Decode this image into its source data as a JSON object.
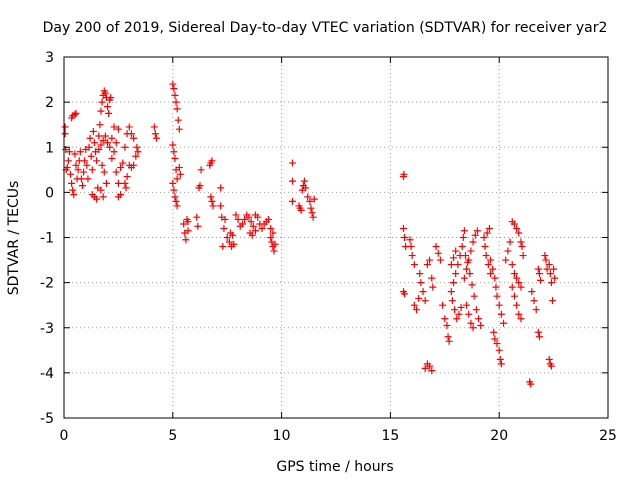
{
  "chart_data": {
    "type": "scatter",
    "title": "Day 200 of 2019, Sidereal Day-to-day VTEC variation (SDTVAR) for receiver yar2",
    "xlabel": "GPS time / hours",
    "ylabel": "SDTVAR / TECUs",
    "xlim": [
      0,
      25
    ],
    "ylim": [
      -5,
      3
    ],
    "xticks": [
      0,
      5,
      10,
      15,
      20,
      25
    ],
    "yticks": [
      -5,
      -4,
      -3,
      -2,
      -1,
      0,
      1,
      2,
      3
    ],
    "grid": true,
    "marker": "+",
    "color": "#ff0000",
    "series": [
      {
        "name": "SDTVAR",
        "points": [
          [
            0.05,
            1.45
          ],
          [
            0.05,
            1.3
          ],
          [
            0.08,
            0.95
          ],
          [
            0.1,
            0.5
          ],
          [
            0.15,
            0.55
          ],
          [
            0.2,
            0.7
          ],
          [
            0.25,
            0.9
          ],
          [
            0.3,
            0.4
          ],
          [
            0.35,
            0.2
          ],
          [
            0.4,
            0.05
          ],
          [
            0.45,
            -0.05
          ],
          [
            0.5,
            0.85
          ],
          [
            0.55,
            0.6
          ],
          [
            0.35,
            1.65
          ],
          [
            0.4,
            1.7
          ],
          [
            0.5,
            1.72
          ],
          [
            0.55,
            1.75
          ],
          [
            0.6,
            0.3
          ],
          [
            0.65,
            0.5
          ],
          [
            0.7,
            0.7
          ],
          [
            0.75,
            0.9
          ],
          [
            0.8,
            0.3
          ],
          [
            0.85,
            0.15
          ],
          [
            0.9,
            0.45
          ],
          [
            0.95,
            0.7
          ],
          [
            1.0,
            0.95
          ],
          [
            1.05,
            0.6
          ],
          [
            1.1,
            0.3
          ],
          [
            1.15,
            1.0
          ],
          [
            1.2,
            1.2
          ],
          [
            1.25,
            0.8
          ],
          [
            1.3,
            0.5
          ],
          [
            1.35,
            1.35
          ],
          [
            1.4,
            1.1
          ],
          [
            1.45,
            0.9
          ],
          [
            1.5,
            0.7
          ],
          [
            1.3,
            -0.05
          ],
          [
            1.4,
            -0.1
          ],
          [
            1.5,
            -0.15
          ],
          [
            1.55,
            0.1
          ],
          [
            1.6,
            1.25
          ],
          [
            1.65,
            1.5
          ],
          [
            1.7,
            1.8
          ],
          [
            1.75,
            2.0
          ],
          [
            1.8,
            2.15
          ],
          [
            1.85,
            2.25
          ],
          [
            1.9,
            2.2
          ],
          [
            1.95,
            2.1
          ],
          [
            2.0,
            1.9
          ],
          [
            2.05,
            1.75
          ],
          [
            2.1,
            2.05
          ],
          [
            2.15,
            2.1
          ],
          [
            1.6,
            0.95
          ],
          [
            1.7,
            1.05
          ],
          [
            1.8,
            1.15
          ],
          [
            1.9,
            1.25
          ],
          [
            2.0,
            1.1
          ],
          [
            2.1,
            1.0
          ],
          [
            2.2,
            1.2
          ],
          [
            2.3,
            1.45
          ],
          [
            1.75,
            0.6
          ],
          [
            1.85,
            0.45
          ],
          [
            1.95,
            0.2
          ],
          [
            1.7,
            0.05
          ],
          [
            1.8,
            -0.1
          ],
          [
            2.2,
            0.75
          ],
          [
            2.3,
            0.9
          ],
          [
            2.4,
            1.1
          ],
          [
            2.5,
            1.4
          ],
          [
            2.4,
            0.45
          ],
          [
            2.5,
            0.2
          ],
          [
            2.5,
            -0.1
          ],
          [
            2.6,
            -0.05
          ],
          [
            2.6,
            0.55
          ],
          [
            2.7,
            0.65
          ],
          [
            2.8,
            1.0
          ],
          [
            2.9,
            1.3
          ],
          [
            3.0,
            1.45
          ],
          [
            3.1,
            1.3
          ],
          [
            3.2,
            1.2
          ],
          [
            2.8,
            0.2
          ],
          [
            2.85,
            0.1
          ],
          [
            2.9,
            0.35
          ],
          [
            3.0,
            0.6
          ],
          [
            3.1,
            0.55
          ],
          [
            3.2,
            0.6
          ],
          [
            3.3,
            0.8
          ],
          [
            3.35,
            1.0
          ],
          [
            3.4,
            0.9
          ],
          [
            4.15,
            1.45
          ],
          [
            4.2,
            1.3
          ],
          [
            4.25,
            1.2
          ],
          [
            5.0,
            2.4
          ],
          [
            5.05,
            2.3
          ],
          [
            5.1,
            2.15
          ],
          [
            5.15,
            2.0
          ],
          [
            5.2,
            1.85
          ],
          [
            5.25,
            1.6
          ],
          [
            5.3,
            1.4
          ],
          [
            5.0,
            1.05
          ],
          [
            5.05,
            0.9
          ],
          [
            5.1,
            0.75
          ],
          [
            5.15,
            0.5
          ],
          [
            5.2,
            0.3
          ],
          [
            5.0,
            0.2
          ],
          [
            5.05,
            0.05
          ],
          [
            5.1,
            -0.1
          ],
          [
            5.15,
            -0.2
          ],
          [
            5.2,
            -0.3
          ],
          [
            5.3,
            0.55
          ],
          [
            5.35,
            0.4
          ],
          [
            5.5,
            -0.7
          ],
          [
            5.55,
            -0.9
          ],
          [
            5.6,
            -1.05
          ],
          [
            5.65,
            -0.6
          ],
          [
            5.7,
            -0.65
          ],
          [
            5.7,
            -0.85
          ],
          [
            6.1,
            -0.55
          ],
          [
            6.15,
            -0.75
          ],
          [
            6.2,
            0.1
          ],
          [
            6.25,
            0.15
          ],
          [
            6.3,
            0.5
          ],
          [
            6.7,
            0.6
          ],
          [
            6.75,
            0.65
          ],
          [
            6.8,
            0.7
          ],
          [
            6.75,
            -0.1
          ],
          [
            6.8,
            -0.2
          ],
          [
            6.85,
            -0.3
          ],
          [
            7.2,
            0.1
          ],
          [
            7.2,
            -0.3
          ],
          [
            7.25,
            -0.55
          ],
          [
            7.3,
            -1.2
          ],
          [
            7.35,
            -0.8
          ],
          [
            7.4,
            -0.6
          ],
          [
            7.5,
            -1.0
          ],
          [
            7.6,
            -1.1
          ],
          [
            7.7,
            -1.2
          ],
          [
            7.65,
            -0.9
          ],
          [
            7.75,
            -0.95
          ],
          [
            7.8,
            -1.15
          ],
          [
            7.9,
            -0.5
          ],
          [
            8.0,
            -0.6
          ],
          [
            8.1,
            -0.75
          ],
          [
            8.2,
            -0.7
          ],
          [
            8.3,
            -0.6
          ],
          [
            8.4,
            -0.5
          ],
          [
            8.5,
            -0.55
          ],
          [
            8.6,
            -0.65
          ],
          [
            8.7,
            -0.75
          ],
          [
            8.8,
            -0.85
          ],
          [
            8.55,
            -0.9
          ],
          [
            8.65,
            -0.95
          ],
          [
            8.8,
            -0.5
          ],
          [
            8.9,
            -0.55
          ],
          [
            9.0,
            -0.7
          ],
          [
            9.1,
            -0.8
          ],
          [
            9.2,
            -0.7
          ],
          [
            9.3,
            -0.65
          ],
          [
            9.4,
            -0.6
          ],
          [
            9.5,
            -0.8
          ],
          [
            9.6,
            -0.9
          ],
          [
            9.5,
            -1.0
          ],
          [
            9.55,
            -1.1
          ],
          [
            9.6,
            -1.2
          ],
          [
            9.65,
            -1.3
          ],
          [
            9.7,
            -1.15
          ],
          [
            10.5,
            0.65
          ],
          [
            10.5,
            0.25
          ],
          [
            10.5,
            -0.2
          ],
          [
            10.8,
            -0.3
          ],
          [
            10.85,
            -0.35
          ],
          [
            10.9,
            -0.4
          ],
          [
            10.95,
            0.05
          ],
          [
            11.0,
            0.15
          ],
          [
            11.05,
            0.25
          ],
          [
            11.1,
            0.1
          ],
          [
            11.2,
            -0.1
          ],
          [
            11.3,
            -0.2
          ],
          [
            11.35,
            -0.35
          ],
          [
            11.4,
            -0.45
          ],
          [
            11.45,
            -0.55
          ],
          [
            11.5,
            -0.15
          ],
          [
            15.6,
            0.35
          ],
          [
            15.62,
            0.4
          ],
          [
            15.6,
            -0.8
          ],
          [
            15.65,
            -1.0
          ],
          [
            15.7,
            -1.2
          ],
          [
            15.6,
            -2.2
          ],
          [
            15.65,
            -2.25
          ],
          [
            15.9,
            -1.05
          ],
          [
            15.95,
            -1.2
          ],
          [
            16.0,
            -1.4
          ],
          [
            16.1,
            -1.6
          ],
          [
            16.1,
            -2.5
          ],
          [
            16.2,
            -2.6
          ],
          [
            16.3,
            -2.35
          ],
          [
            16.35,
            -1.8
          ],
          [
            16.4,
            -2.0
          ],
          [
            16.5,
            -2.2
          ],
          [
            16.6,
            -2.4
          ],
          [
            16.7,
            -1.6
          ],
          [
            16.8,
            -1.5
          ],
          [
            16.9,
            -1.9
          ],
          [
            16.95,
            -2.1
          ],
          [
            16.6,
            -3.9
          ],
          [
            16.7,
            -3.8
          ],
          [
            16.8,
            -3.85
          ],
          [
            16.9,
            -3.95
          ],
          [
            17.1,
            -1.2
          ],
          [
            17.2,
            -1.35
          ],
          [
            17.3,
            -1.5
          ],
          [
            17.4,
            -2.5
          ],
          [
            17.5,
            -2.8
          ],
          [
            17.6,
            -2.95
          ],
          [
            17.65,
            -3.2
          ],
          [
            17.7,
            -3.3
          ],
          [
            17.8,
            -2.2
          ],
          [
            17.9,
            -2.0
          ],
          [
            18.0,
            -1.8
          ],
          [
            18.1,
            -1.6
          ],
          [
            18.2,
            -1.4
          ],
          [
            18.3,
            -1.2
          ],
          [
            18.35,
            -1.0
          ],
          [
            18.4,
            -0.85
          ],
          [
            17.8,
            -1.6
          ],
          [
            17.9,
            -1.45
          ],
          [
            18.0,
            -1.3
          ],
          [
            17.85,
            -2.4
          ],
          [
            17.95,
            -2.6
          ],
          [
            18.05,
            -2.8
          ],
          [
            18.15,
            -2.7
          ],
          [
            18.25,
            -2.55
          ],
          [
            18.4,
            -1.9
          ],
          [
            18.5,
            -1.7
          ],
          [
            18.6,
            -1.5
          ],
          [
            18.7,
            -1.3
          ],
          [
            18.8,
            -1.1
          ],
          [
            18.9,
            -0.95
          ],
          [
            19.0,
            -0.85
          ],
          [
            18.45,
            -1.4
          ],
          [
            18.55,
            -1.55
          ],
          [
            18.65,
            -1.8
          ],
          [
            18.75,
            -2.05
          ],
          [
            18.85,
            -2.3
          ],
          [
            18.95,
            -2.6
          ],
          [
            19.05,
            -2.8
          ],
          [
            19.15,
            -2.95
          ],
          [
            18.5,
            -2.5
          ],
          [
            18.6,
            -2.7
          ],
          [
            18.7,
            -2.9
          ],
          [
            18.8,
            -3.0
          ],
          [
            19.3,
            -1.0
          ],
          [
            19.35,
            -1.2
          ],
          [
            19.4,
            -1.4
          ],
          [
            19.5,
            -1.6
          ],
          [
            19.6,
            -1.8
          ],
          [
            19.45,
            -0.9
          ],
          [
            19.55,
            -0.8
          ],
          [
            19.6,
            -1.5
          ],
          [
            19.7,
            -1.7
          ],
          [
            19.8,
            -1.9
          ],
          [
            19.85,
            -2.1
          ],
          [
            19.9,
            -2.3
          ],
          [
            19.75,
            -3.1
          ],
          [
            19.8,
            -3.25
          ],
          [
            19.9,
            -3.35
          ],
          [
            20.0,
            -3.5
          ],
          [
            20.05,
            -3.7
          ],
          [
            20.1,
            -3.8
          ],
          [
            20.0,
            -2.5
          ],
          [
            20.1,
            -2.7
          ],
          [
            20.2,
            -2.9
          ],
          [
            20.3,
            -1.5
          ],
          [
            20.4,
            -1.3
          ],
          [
            20.5,
            -1.1
          ],
          [
            20.6,
            -0.65
          ],
          [
            20.7,
            -0.7
          ],
          [
            20.8,
            -0.8
          ],
          [
            20.9,
            -0.9
          ],
          [
            20.6,
            -2.1
          ],
          [
            20.7,
            -2.3
          ],
          [
            20.8,
            -2.5
          ],
          [
            20.9,
            -2.7
          ],
          [
            21.0,
            -2.8
          ],
          [
            20.6,
            -1.6
          ],
          [
            20.7,
            -1.8
          ],
          [
            20.8,
            -1.9
          ],
          [
            20.9,
            -2.0
          ],
          [
            21.0,
            -2.1
          ],
          [
            21.0,
            -1.1
          ],
          [
            21.05,
            -1.2
          ],
          [
            21.1,
            -1.4
          ],
          [
            21.4,
            -4.2
          ],
          [
            21.45,
            -4.25
          ],
          [
            21.5,
            -2.2
          ],
          [
            21.6,
            -2.4
          ],
          [
            21.7,
            -2.6
          ],
          [
            21.8,
            -1.7
          ],
          [
            21.85,
            -1.8
          ],
          [
            21.9,
            -1.95
          ],
          [
            21.8,
            -3.1
          ],
          [
            21.85,
            -3.2
          ],
          [
            22.1,
            -1.4
          ],
          [
            22.15,
            -1.5
          ],
          [
            22.2,
            -1.7
          ],
          [
            22.3,
            -1.6
          ],
          [
            22.35,
            -1.8
          ],
          [
            22.4,
            -2.0
          ],
          [
            22.45,
            -2.4
          ],
          [
            22.3,
            -3.7
          ],
          [
            22.35,
            -3.8
          ],
          [
            22.4,
            -3.85
          ],
          [
            22.5,
            -1.7
          ],
          [
            22.55,
            -1.9
          ]
        ]
      }
    ]
  }
}
